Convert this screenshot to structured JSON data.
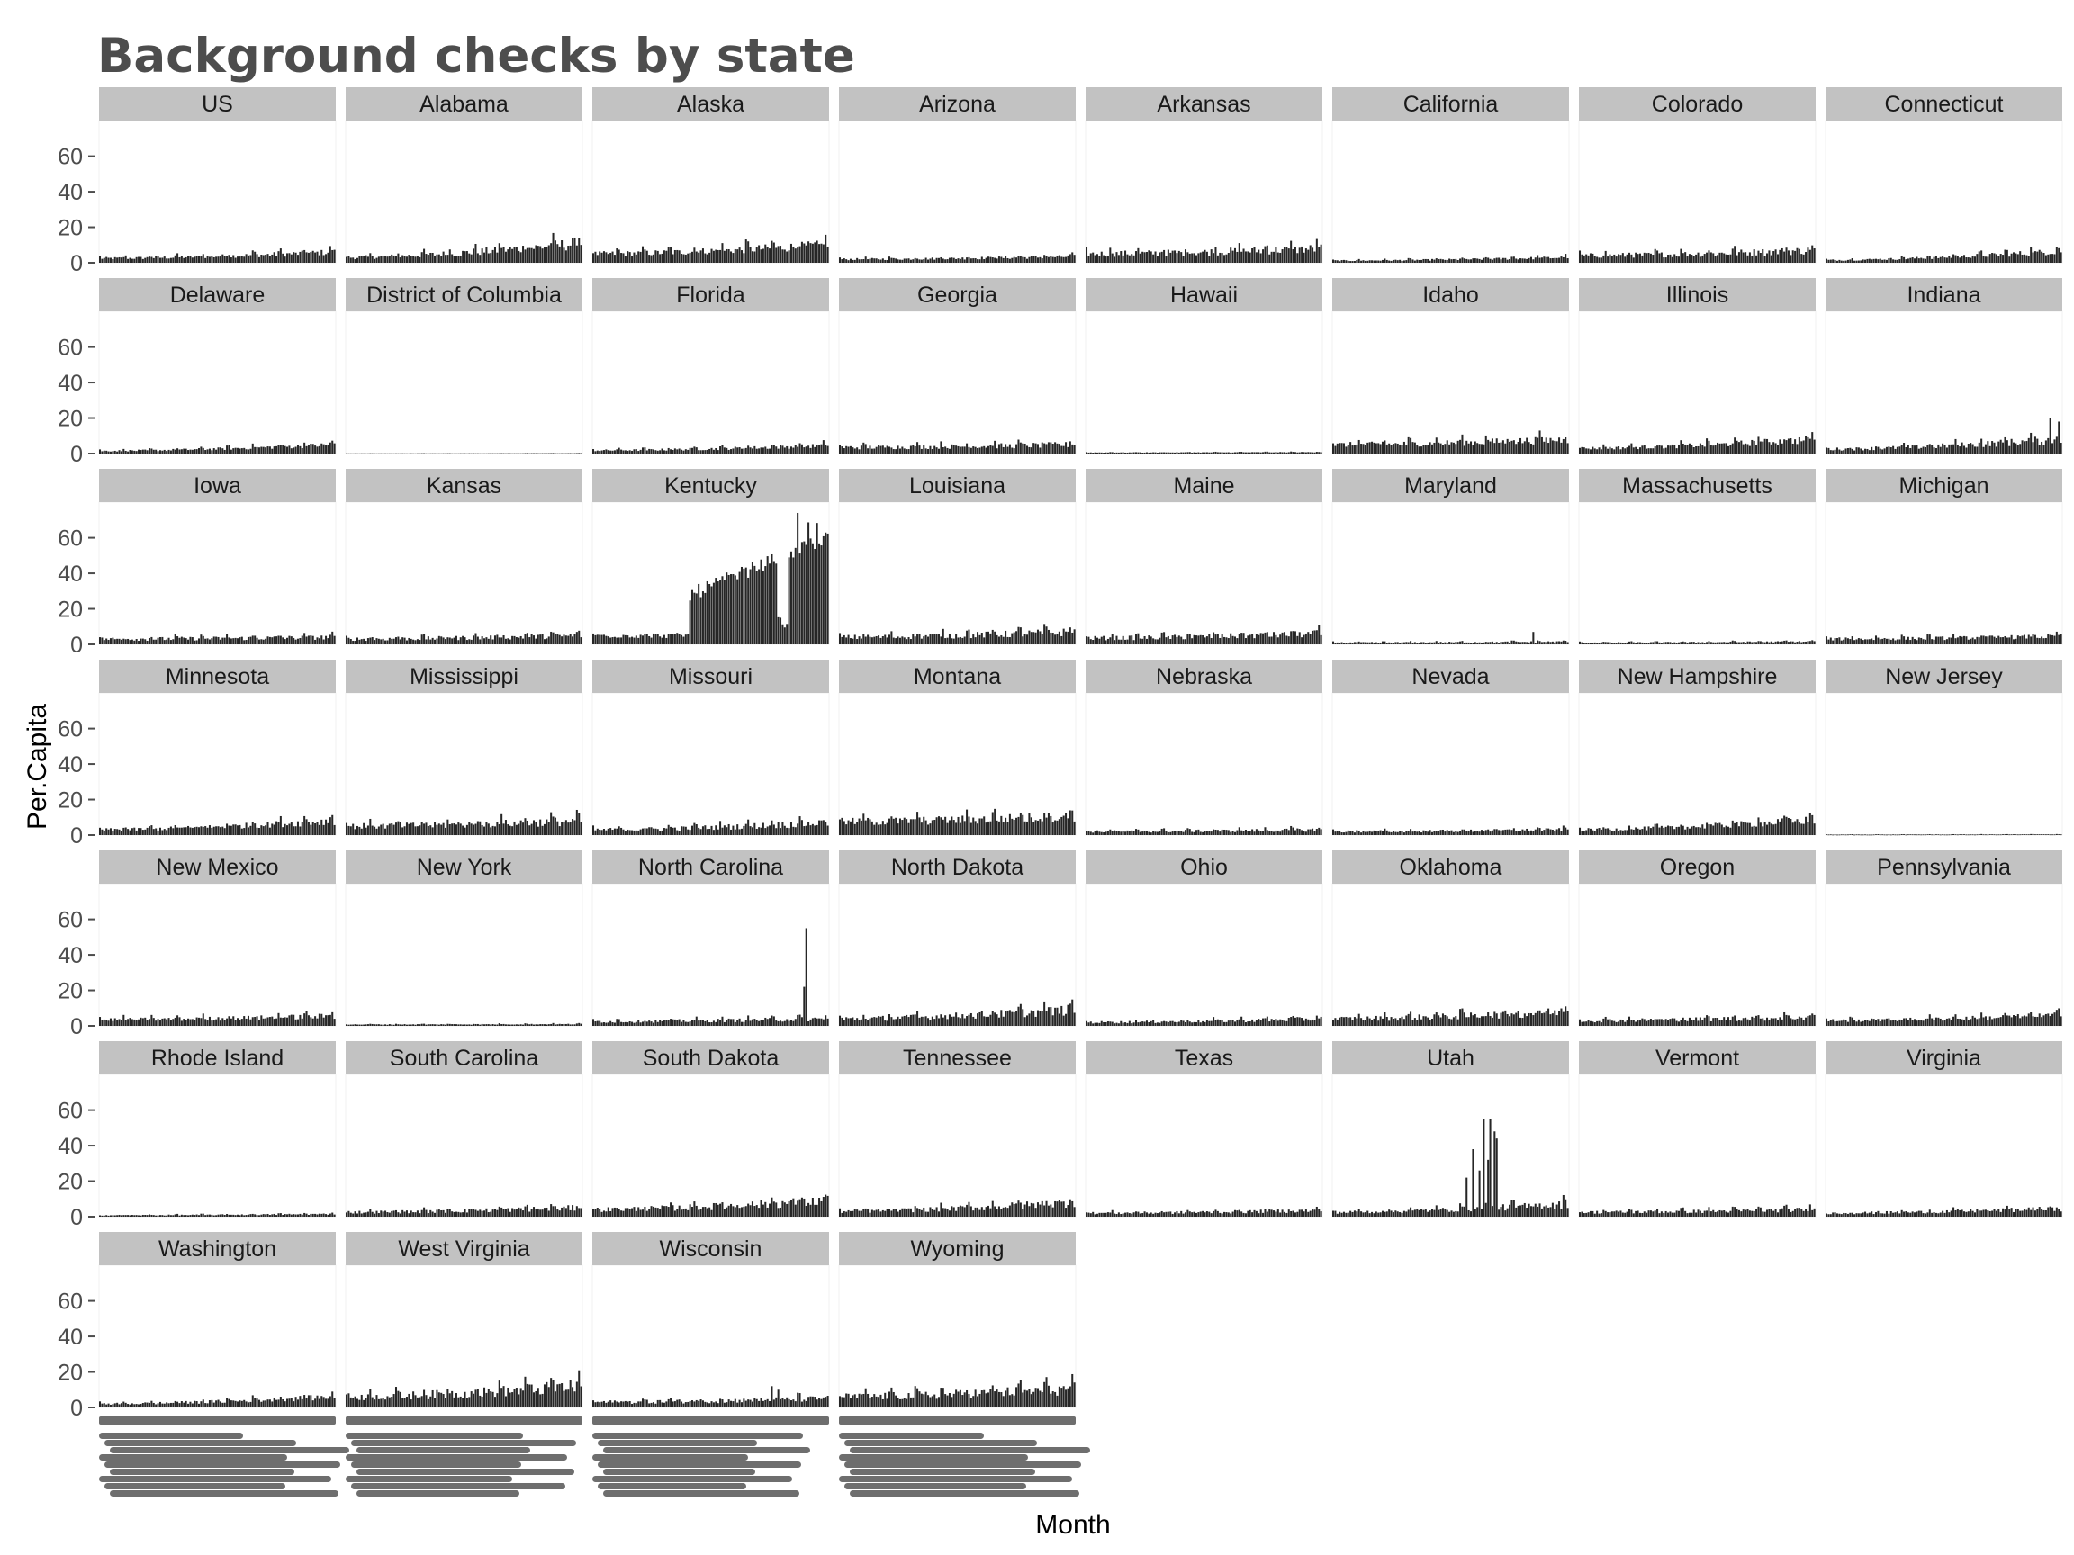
{
  "chart_data": {
    "type": "bar",
    "title": "Background checks by state",
    "xlabel": "Month",
    "ylabel": "Per.Capita",
    "ylim": [
      0,
      75
    ],
    "yticks": [
      0,
      20,
      40,
      60
    ],
    "grid": false,
    "layout": "facet_wrap, 8 columns",
    "colors": {
      "bar": "#262626",
      "strip": "#c2c2c2",
      "tick_text": "#4d4d4d"
    },
    "months_per_panel": 110,
    "panels": [
      {
        "name": "US",
        "base": 2.5,
        "end": 6,
        "noise": 0.3
      },
      {
        "name": "Alabama",
        "base": 3,
        "end": 11,
        "noise": 0.35
      },
      {
        "name": "Alaska",
        "base": 5,
        "end": 10,
        "noise": 0.3
      },
      {
        "name": "Arizona",
        "base": 2,
        "end": 3.5,
        "noise": 0.3
      },
      {
        "name": "Arkansas",
        "base": 5,
        "end": 8,
        "noise": 0.35
      },
      {
        "name": "California",
        "base": 1.2,
        "end": 3,
        "noise": 0.3
      },
      {
        "name": "Colorado",
        "base": 4,
        "end": 7,
        "noise": 0.35
      },
      {
        "name": "Connecticut",
        "base": 1.5,
        "end": 6.5,
        "noise": 0.3
      },
      {
        "name": "Delaware",
        "base": 1.5,
        "end": 5,
        "noise": 0.3
      },
      {
        "name": "District of Columbia",
        "base": 0.1,
        "end": 0.2,
        "noise": 0.3
      },
      {
        "name": "Florida",
        "base": 1.8,
        "end": 4.5,
        "noise": 0.3
      },
      {
        "name": "Georgia",
        "base": 3.5,
        "end": 5,
        "noise": 0.35
      },
      {
        "name": "Hawaii",
        "base": 0.6,
        "end": 0.8,
        "noise": 0.2
      },
      {
        "name": "Idaho",
        "base": 5,
        "end": 8,
        "noise": 0.3
      },
      {
        "name": "Illinois",
        "base": 3,
        "end": 8,
        "noise": 0.3
      },
      {
        "name": "Indiana",
        "base": 2.5,
        "end": 8,
        "noise": 0.35,
        "spikes": [
          [
            104,
            20
          ],
          [
            108,
            18
          ]
        ]
      },
      {
        "name": "Iowa",
        "base": 3,
        "end": 4,
        "noise": 0.35
      },
      {
        "name": "Kansas",
        "base": 3,
        "end": 5,
        "noise": 0.35
      },
      {
        "name": "Kentucky",
        "base": 5,
        "end": 60,
        "noise": 0.25,
        "kentucky": true
      },
      {
        "name": "Louisiana",
        "base": 4,
        "end": 7,
        "noise": 0.35
      },
      {
        "name": "Maine",
        "base": 3.5,
        "end": 6,
        "noise": 0.35
      },
      {
        "name": "Maryland",
        "base": 1,
        "end": 1.5,
        "noise": 0.3,
        "spikes": [
          [
            93,
            7
          ]
        ]
      },
      {
        "name": "Massachusetts",
        "base": 1,
        "end": 1.6,
        "noise": 0.25
      },
      {
        "name": "Michigan",
        "base": 3,
        "end": 4.5,
        "noise": 0.3
      },
      {
        "name": "Minnesota",
        "base": 3,
        "end": 8,
        "noise": 0.3
      },
      {
        "name": "Mississippi",
        "base": 5,
        "end": 8,
        "noise": 0.35
      },
      {
        "name": "Missouri",
        "base": 3,
        "end": 7,
        "noise": 0.35
      },
      {
        "name": "Montana",
        "base": 7.5,
        "end": 10.5,
        "noise": 0.3
      },
      {
        "name": "Nebraska",
        "base": 2,
        "end": 3,
        "noise": 0.35
      },
      {
        "name": "Nevada",
        "base": 2,
        "end": 3,
        "noise": 0.35
      },
      {
        "name": "New Hampshire",
        "base": 3,
        "end": 8.5,
        "noise": 0.3
      },
      {
        "name": "New Jersey",
        "base": 0.3,
        "end": 0.4,
        "noise": 0.2
      },
      {
        "name": "New Mexico",
        "base": 3.5,
        "end": 5.5,
        "noise": 0.3
      },
      {
        "name": "New York",
        "base": 0.8,
        "end": 1,
        "noise": 0.25
      },
      {
        "name": "North Carolina",
        "base": 2.5,
        "end": 4,
        "noise": 0.35,
        "spikes": [
          [
            98,
            22
          ],
          [
            99,
            55
          ]
        ]
      },
      {
        "name": "North Dakota",
        "base": 4,
        "end": 9,
        "noise": 0.35
      },
      {
        "name": "Ohio",
        "base": 2,
        "end": 4,
        "noise": 0.35
      },
      {
        "name": "Oklahoma",
        "base": 4,
        "end": 8,
        "noise": 0.35
      },
      {
        "name": "Oregon",
        "base": 3,
        "end": 5,
        "noise": 0.35
      },
      {
        "name": "Pennsylvania",
        "base": 3,
        "end": 6,
        "noise": 0.3
      },
      {
        "name": "Rhode Island",
        "base": 0.8,
        "end": 1.5,
        "noise": 0.3
      },
      {
        "name": "South Carolina",
        "base": 2.5,
        "end": 5,
        "noise": 0.35
      },
      {
        "name": "South Dakota",
        "base": 4,
        "end": 9,
        "noise": 0.35
      },
      {
        "name": "Tennessee",
        "base": 3,
        "end": 8,
        "noise": 0.35
      },
      {
        "name": "Texas",
        "base": 2,
        "end": 3.5,
        "noise": 0.35
      },
      {
        "name": "Utah",
        "base": 2.5,
        "end": 7,
        "noise": 0.35,
        "spikes": [
          [
            62,
            22
          ],
          [
            65,
            38
          ],
          [
            68,
            26
          ],
          [
            70,
            55
          ],
          [
            72,
            32
          ],
          [
            73,
            55
          ],
          [
            75,
            48
          ],
          [
            76,
            44
          ]
        ]
      },
      {
        "name": "Vermont",
        "base": 2.5,
        "end": 4,
        "noise": 0.35
      },
      {
        "name": "Virginia",
        "base": 2,
        "end": 4.5,
        "noise": 0.35
      },
      {
        "name": "Washington",
        "base": 2,
        "end": 6,
        "noise": 0.3
      },
      {
        "name": "West Virginia",
        "base": 6,
        "end": 12,
        "noise": 0.35
      },
      {
        "name": "Wisconsin",
        "base": 3,
        "end": 5,
        "noise": 0.35,
        "spikes": [
          [
            83,
            12
          ],
          [
            86,
            10
          ]
        ]
      },
      {
        "name": "Wyoming",
        "base": 6,
        "end": 10.5,
        "noise": 0.35
      }
    ]
  }
}
